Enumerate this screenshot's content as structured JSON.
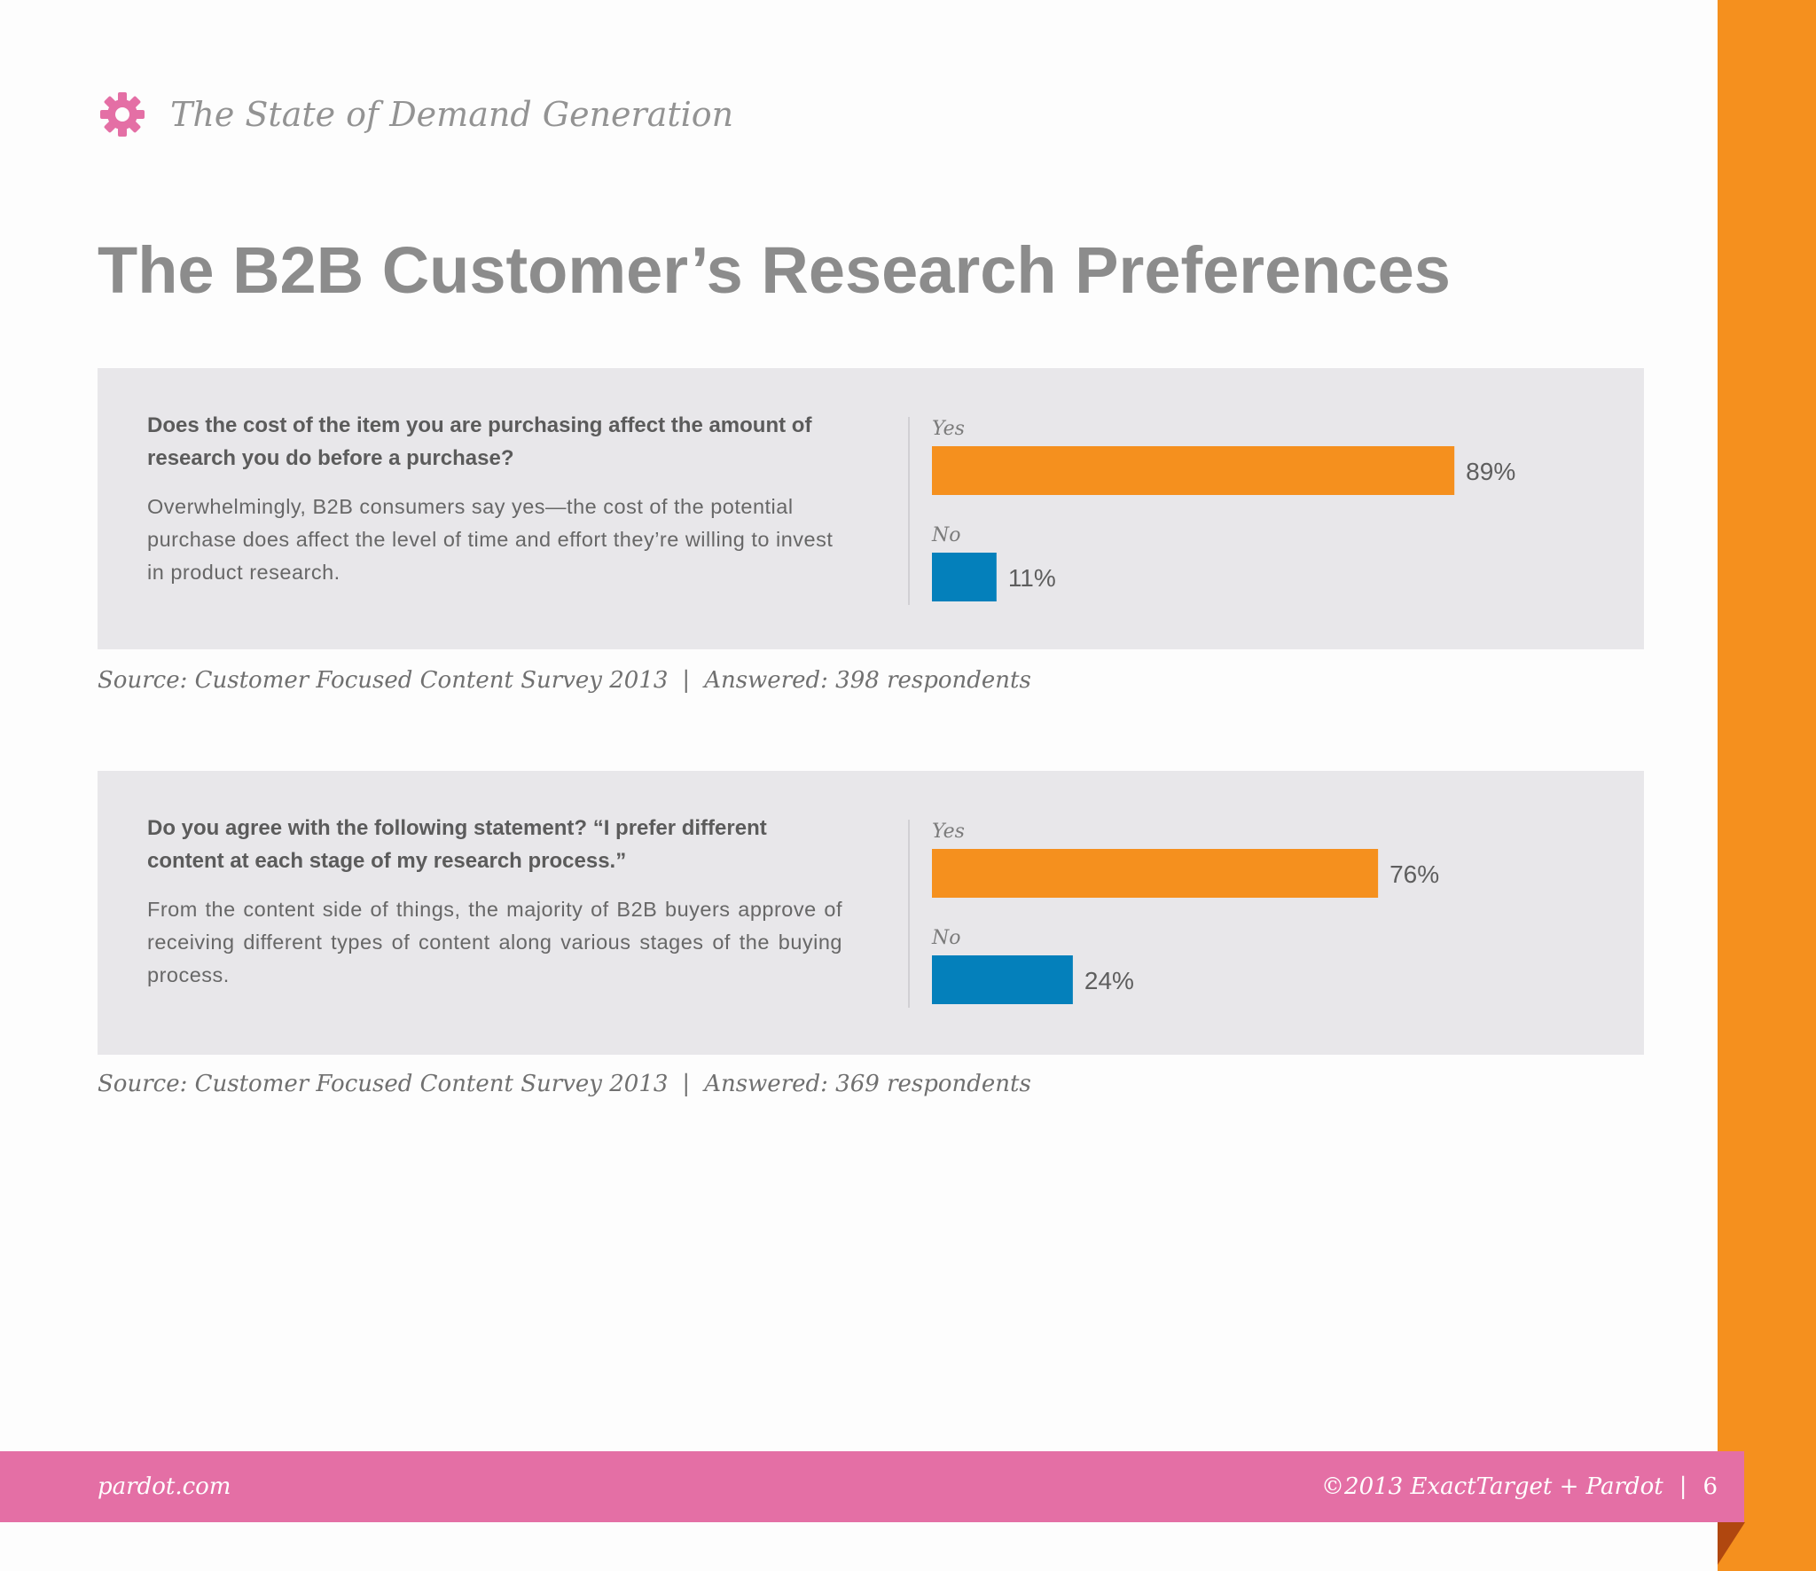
{
  "header": {
    "title": "The State of Demand Generation",
    "icon": "gear-icon"
  },
  "page_title": "The B2B Customer’s Research Preferences",
  "colors": {
    "yes": "#f5901e",
    "no": "#0480bb",
    "accent": "#e46fa5"
  },
  "chart_data": [
    {
      "type": "bar",
      "orientation": "horizontal",
      "question": "Does the cost of the item you are purchasing affect the amount of research you do before a purchase?",
      "answer": "Overwhelmingly, B2B consumers say yes—the cost of the potential purchase does affect the level of time and effort they’re willing to invest in product research.",
      "categories": [
        "Yes",
        "No"
      ],
      "values": [
        89,
        11
      ],
      "value_labels": [
        "89%",
        "11%"
      ],
      "xlim": [
        0,
        100
      ],
      "source": "Source: Customer Focused Content Survey 2013",
      "answered": "Answered: 398 respondents"
    },
    {
      "type": "bar",
      "orientation": "horizontal",
      "question": "Do you agree with the following statement? “I prefer different content at each stage of my research process.”",
      "answer": "From the content side of things, the majority of B2B buyers approve of receiving different types of content along various stages of the buying process.",
      "categories": [
        "Yes",
        "No"
      ],
      "values": [
        76,
        24
      ],
      "value_labels": [
        "76%",
        "24%"
      ],
      "xlim": [
        0,
        100
      ],
      "source": "Source: Customer Focused Content Survey 2013",
      "answered": "Answered: 369 respondents"
    }
  ],
  "footer": {
    "site": "pardot.com",
    "copyright": "©2013  ExactTarget + Pardot",
    "page_number": "6"
  }
}
